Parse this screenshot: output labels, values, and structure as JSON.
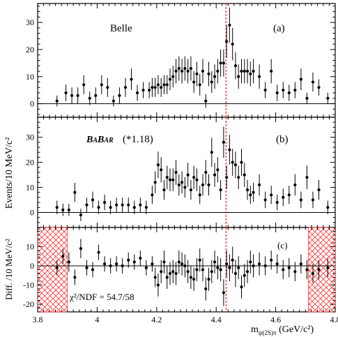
{
  "chart_data": {
    "type": "scatter",
    "xlabel_main": "m",
    "xlabel_sub": "ψ(2S)π",
    "xlabel_unit": " (GeV/c²)",
    "ylabel_top": "Events/10 MeV/c²",
    "ylabel_bottom": "Diff. /10 MeV/c²",
    "x_range": [
      3.8,
      4.8
    ],
    "x_ticks": [
      3.8,
      4.0,
      4.2,
      4.4,
      4.6,
      4.8
    ],
    "x_tick_labels": [
      "3.8",
      "4",
      "4.2",
      "4.4",
      "4.6",
      "4.8"
    ],
    "marker_x": 4.433,
    "marker_color": "#ff2a2a",
    "panels": [
      {
        "id": "a",
        "tag": "(a)",
        "title": "Belle",
        "ylim": [
          -5,
          37
        ],
        "y_ticks": [
          0,
          10,
          20,
          30
        ],
        "x": [
          3.865,
          3.895,
          3.915,
          3.935,
          3.955,
          3.975,
          3.995,
          4.015,
          4.035,
          4.055,
          4.075,
          4.095,
          4.115,
          4.135,
          4.155,
          4.175,
          4.185,
          4.195,
          4.205,
          4.215,
          4.225,
          4.235,
          4.245,
          4.255,
          4.265,
          4.275,
          4.285,
          4.295,
          4.305,
          4.315,
          4.325,
          4.335,
          4.345,
          4.355,
          4.365,
          4.375,
          4.385,
          4.395,
          4.405,
          4.415,
          4.425,
          4.435,
          4.445,
          4.455,
          4.465,
          4.475,
          4.485,
          4.495,
          4.505,
          4.515,
          4.525,
          4.545,
          4.565,
          4.585,
          4.605,
          4.625,
          4.645,
          4.665,
          4.685,
          4.705,
          4.725,
          4.745,
          4.775
        ],
        "y": [
          1,
          4,
          3,
          3,
          7,
          2,
          3,
          7,
          6,
          1,
          3,
          6,
          9,
          4,
          5,
          5,
          6,
          6,
          7,
          6,
          7,
          7,
          9,
          10,
          12,
          13,
          12,
          13,
          12,
          13,
          8,
          11,
          7,
          12,
          1,
          11,
          8,
          10,
          12,
          15,
          15,
          23,
          29,
          22,
          14,
          10,
          12,
          12,
          12,
          11,
          12,
          10,
          5,
          12,
          4,
          5,
          4,
          5,
          9,
          2,
          8,
          6,
          2
        ],
        "e": [
          2,
          3,
          3,
          3,
          3.5,
          2.5,
          3,
          3.5,
          3.5,
          2,
          3,
          3.5,
          4,
          3,
          3,
          3,
          3.5,
          3.5,
          3.5,
          3.5,
          3.5,
          3.5,
          4,
          4,
          4.5,
          4.5,
          4.5,
          4.5,
          4.5,
          4.5,
          4,
          4.5,
          4,
          4.5,
          2.5,
          4.5,
          4,
          4.5,
          4.5,
          5,
          5,
          6,
          6.5,
          6,
          5,
          4.5,
          4.5,
          4.5,
          4.5,
          4.5,
          4.5,
          4.5,
          3,
          4.5,
          3,
          3,
          3,
          3,
          4,
          2,
          3.5,
          3,
          2
        ]
      },
      {
        "id": "b",
        "tag": "(b)",
        "title": "BABAR",
        "scale_note": "(*1.18)",
        "ylim": [
          -6,
          38
        ],
        "y_ticks": [
          0,
          10,
          20,
          30
        ],
        "x": [
          3.865,
          3.885,
          3.905,
          3.925,
          3.945,
          3.965,
          3.985,
          4.005,
          4.025,
          4.045,
          4.065,
          4.085,
          4.105,
          4.125,
          4.145,
          4.165,
          4.185,
          4.195,
          4.205,
          4.215,
          4.225,
          4.235,
          4.245,
          4.255,
          4.265,
          4.275,
          4.285,
          4.295,
          4.305,
          4.315,
          4.325,
          4.335,
          4.345,
          4.355,
          4.365,
          4.375,
          4.385,
          4.395,
          4.405,
          4.415,
          4.425,
          4.435,
          4.445,
          4.455,
          4.465,
          4.475,
          4.485,
          4.495,
          4.505,
          4.515,
          4.525,
          4.545,
          4.565,
          4.585,
          4.605,
          4.625,
          4.645,
          4.665,
          4.685,
          4.705,
          4.725,
          4.745,
          4.775
        ],
        "y": [
          2,
          1,
          1,
          8,
          -1,
          3,
          5,
          2,
          4,
          2,
          3,
          3,
          3,
          2,
          3,
          2,
          7,
          12,
          19,
          17,
          9,
          14,
          13,
          13,
          16,
          11,
          12,
          10,
          15,
          9,
          14,
          13,
          7,
          11,
          16,
          11,
          24,
          15,
          17,
          9,
          28,
          14,
          25,
          20,
          19,
          14,
          20,
          15,
          9,
          7,
          8,
          11,
          5,
          7,
          4,
          6,
          7,
          11,
          5,
          14,
          5,
          9,
          2
        ]
      },
      {
        "id": "c",
        "tag": "(c)",
        "note": "χ²/NDF = 54.7/58",
        "ylim": [
          -24,
          20
        ],
        "y_ticks": [
          -20,
          -10,
          0,
          10
        ],
        "hatch_ranges": [
          [
            3.8,
            3.9
          ],
          [
            4.71,
            4.8
          ]
        ],
        "x": [
          3.865,
          3.885,
          3.905,
          3.925,
          3.945,
          3.965,
          3.985,
          4.005,
          4.025,
          4.045,
          4.065,
          4.085,
          4.105,
          4.125,
          4.145,
          4.165,
          4.185,
          4.195,
          4.205,
          4.215,
          4.225,
          4.235,
          4.245,
          4.255,
          4.265,
          4.275,
          4.285,
          4.295,
          4.305,
          4.315,
          4.325,
          4.335,
          4.345,
          4.355,
          4.365,
          4.375,
          4.385,
          4.395,
          4.405,
          4.415,
          4.425,
          4.435,
          4.445,
          4.455,
          4.465,
          4.475,
          4.485,
          4.495,
          4.505,
          4.515,
          4.525,
          4.545,
          4.565,
          4.585,
          4.605,
          4.625,
          4.645,
          4.665,
          4.685,
          4.705,
          4.725,
          4.745,
          4.775
        ],
        "y": [
          -1,
          5,
          2,
          -6,
          9,
          -1,
          -2,
          7,
          1,
          0,
          1,
          0,
          3,
          2,
          4,
          -1,
          1,
          -6,
          -10,
          -3,
          2,
          -6,
          -4,
          -3,
          -4,
          2,
          1,
          0,
          -3,
          -6,
          -7,
          -2,
          3,
          -2,
          -12,
          -7,
          -3,
          2,
          -1,
          -2,
          -14,
          1,
          -1,
          3,
          -4,
          -1,
          -11,
          -5,
          -3,
          2,
          0,
          1,
          0,
          3,
          1,
          -2,
          -1,
          -3,
          1,
          -2,
          -4,
          -2,
          -1
        ],
        "e": [
          4,
          4,
          5,
          4,
          5,
          4,
          4,
          4,
          4,
          4,
          4,
          4,
          4,
          4,
          4,
          4,
          4,
          5,
          6,
          6,
          6,
          6,
          6,
          6,
          6,
          6,
          6,
          6,
          6,
          6,
          6,
          6,
          6,
          6,
          6,
          6,
          6,
          6,
          6,
          6,
          7,
          7,
          7,
          7,
          7,
          6,
          6,
          6,
          6,
          6,
          6,
          6,
          5,
          5,
          5,
          5,
          5,
          5,
          5,
          5,
          5,
          5,
          5
        ]
      }
    ]
  }
}
